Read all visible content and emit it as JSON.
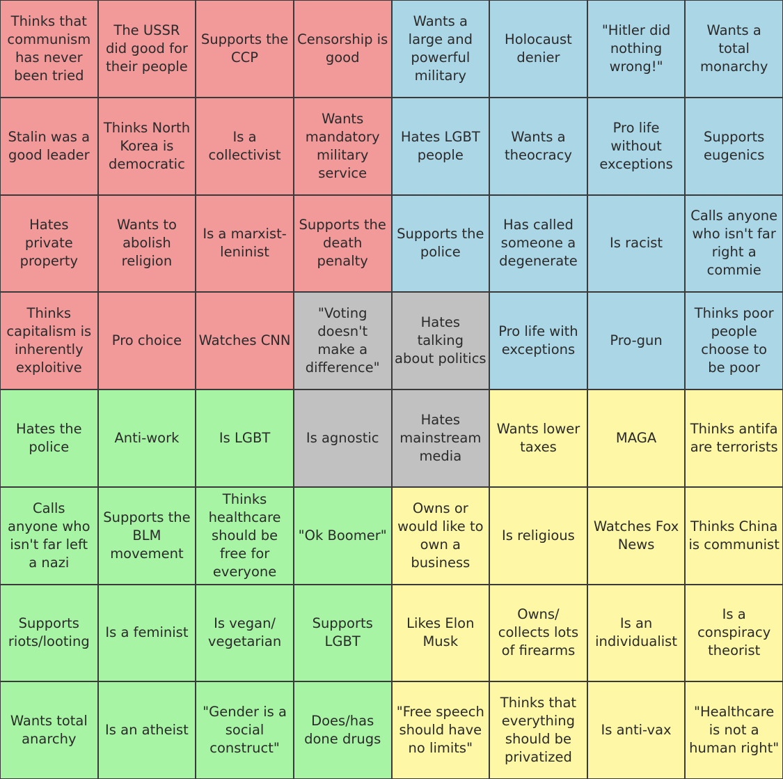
{
  "colors": {
    "red": "#f2999a",
    "blue": "#abd6e6",
    "gray": "#c1c1c1",
    "green": "#a7f5a4",
    "yellow": "#fdf7a6"
  },
  "cells": [
    {
      "text": "Thinks that\ncommunism\nhas never\nbeen tried",
      "color": "red"
    },
    {
      "text": "The USSR\ndid good for\ntheir people",
      "color": "red"
    },
    {
      "text": "Supports the\nCCP",
      "color": "red"
    },
    {
      "text": "Censorship is\ngood",
      "color": "red"
    },
    {
      "text": "Wants a\nlarge and\npowerful\nmilitary",
      "color": "blue"
    },
    {
      "text": "Holocaust\ndenier",
      "color": "blue"
    },
    {
      "text": "\"Hitler did\nnothing\nwrong!\"",
      "color": "blue"
    },
    {
      "text": "Wants a\ntotal\nmonarchy",
      "color": "blue"
    },
    {
      "text": "Stalin was a\ngood leader",
      "color": "red"
    },
    {
      "text": "Thinks North\nKorea is\ndemocratic",
      "color": "red"
    },
    {
      "text": "Is a\ncollectivist",
      "color": "red"
    },
    {
      "text": "Wants\nmandatory\nmilitary\nservice",
      "color": "red"
    },
    {
      "text": "Hates LGBT\npeople",
      "color": "blue"
    },
    {
      "text": "Wants a\ntheocracy",
      "color": "blue"
    },
    {
      "text": "Pro life\nwithout\nexceptions",
      "color": "blue"
    },
    {
      "text": "Supports\neugenics",
      "color": "blue"
    },
    {
      "text": "Hates\nprivate\nproperty",
      "color": "red"
    },
    {
      "text": "Wants to\nabolish\nreligion",
      "color": "red"
    },
    {
      "text": "Is a marxist-\nleninist",
      "color": "red"
    },
    {
      "text": "Supports the\ndeath penalty",
      "color": "red"
    },
    {
      "text": "Supports the\npolice",
      "color": "blue"
    },
    {
      "text": "Has called\nsomeone a\ndegenerate",
      "color": "blue"
    },
    {
      "text": "Is racist",
      "color": "blue"
    },
    {
      "text": "Calls anyone\nwho isn't far\nright a\ncommie",
      "color": "blue"
    },
    {
      "text": "Thinks\ncapitalism is\ninherently\nexploitive",
      "color": "red"
    },
    {
      "text": "Pro choice",
      "color": "red"
    },
    {
      "text": "Watches CNN",
      "color": "red"
    },
    {
      "text": "\"Voting\ndoesn't\nmake a\ndifference\"",
      "color": "gray"
    },
    {
      "text": "Hates\ntalking\nabout politics",
      "color": "gray"
    },
    {
      "text": "Pro life with\nexceptions",
      "color": "blue"
    },
    {
      "text": "Pro-gun",
      "color": "blue"
    },
    {
      "text": "Thinks poor\npeople\nchoose to\nbe poor",
      "color": "blue"
    },
    {
      "text": "Hates the\npolice",
      "color": "green"
    },
    {
      "text": "Anti-work",
      "color": "green"
    },
    {
      "text": "Is LGBT",
      "color": "green"
    },
    {
      "text": "Is agnostic",
      "color": "gray"
    },
    {
      "text": "Hates\nmainstream\nmedia",
      "color": "gray"
    },
    {
      "text": "Wants lower\ntaxes",
      "color": "yellow"
    },
    {
      "text": "MAGA",
      "color": "yellow"
    },
    {
      "text": "Thinks antifa\nare terrorists",
      "color": "yellow"
    },
    {
      "text": "Calls\nanyone who\nisn't far left\na nazi",
      "color": "green"
    },
    {
      "text": "Supports the\nBLM\nmovement",
      "color": "green"
    },
    {
      "text": "Thinks\nhealthcare\nshould be\nfree for\neveryone",
      "color": "green"
    },
    {
      "text": "\"Ok Boomer\"",
      "color": "green"
    },
    {
      "text": "Owns or\nwould like to\nown a\nbusiness",
      "color": "yellow"
    },
    {
      "text": "Is religious",
      "color": "yellow"
    },
    {
      "text": "Watches Fox\nNews",
      "color": "yellow"
    },
    {
      "text": "Thinks China\nis communist",
      "color": "yellow"
    },
    {
      "text": "Supports\nriots/looting",
      "color": "green"
    },
    {
      "text": "Is a feminist",
      "color": "green"
    },
    {
      "text": "Is vegan/\nvegetarian",
      "color": "green"
    },
    {
      "text": "Supports\nLGBT",
      "color": "green"
    },
    {
      "text": "Likes Elon\nMusk",
      "color": "yellow"
    },
    {
      "text": "Owns/\ncollects lots\nof firearms",
      "color": "yellow"
    },
    {
      "text": "Is an\nindividualist",
      "color": "yellow"
    },
    {
      "text": "Is a\nconspiracy\ntheorist",
      "color": "yellow"
    },
    {
      "text": "Wants total\nanarchy",
      "color": "green"
    },
    {
      "text": "Is an atheist",
      "color": "green"
    },
    {
      "text": "\"Gender is a\nsocial\nconstruct\"",
      "color": "green"
    },
    {
      "text": "Does/has\ndone drugs",
      "color": "green"
    },
    {
      "text": "\"Free speech\nshould have\nno limits\"",
      "color": "yellow"
    },
    {
      "text": "Thinks that\neverything\nshould be\nprivatized",
      "color": "yellow"
    },
    {
      "text": "Is anti-vax",
      "color": "yellow"
    },
    {
      "text": "\"Healthcare\nis not a\nhuman right\"",
      "color": "yellow"
    }
  ]
}
